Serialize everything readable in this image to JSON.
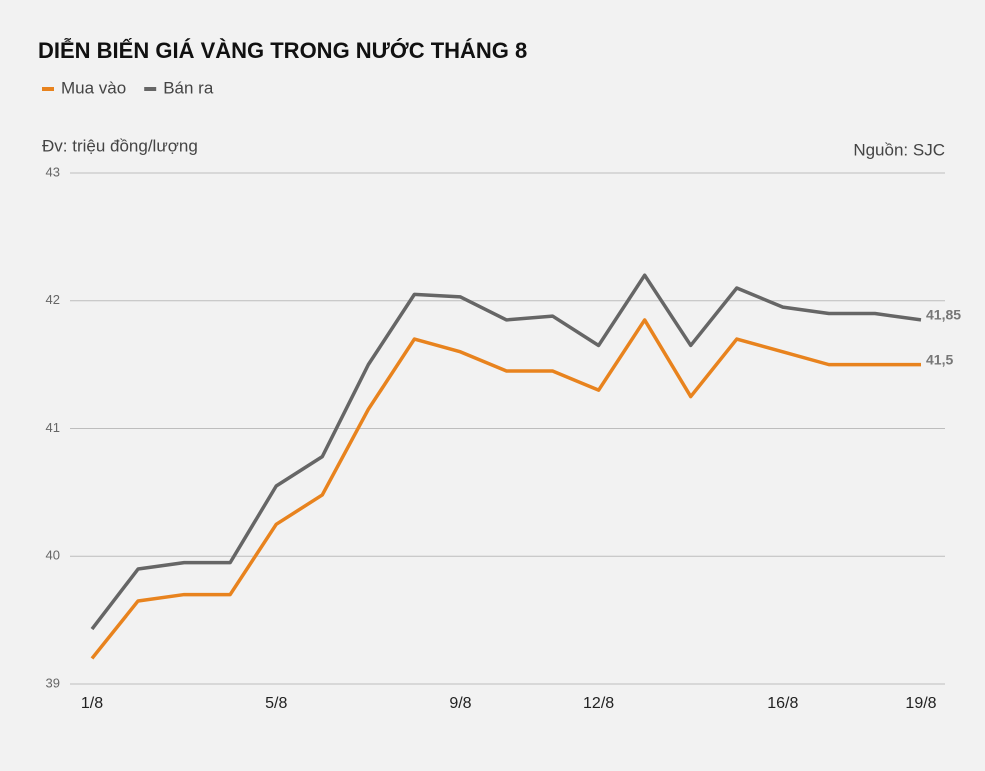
{
  "chart_data": {
    "type": "line",
    "title": "DIỄN BIẾN GIÁ VÀNG TRONG NƯỚC THÁNG 8",
    "y_label": "Đv: triệu đồng/lượng",
    "source": "Nguồn: SJC",
    "categories": [
      "1/8",
      null,
      null,
      null,
      "5/8",
      null,
      null,
      null,
      "9/8",
      null,
      null,
      "12/8",
      null,
      null,
      null,
      "16/8",
      null,
      null,
      "19/8"
    ],
    "series": [
      {
        "name": "Mua vào",
        "color": "#e8831e",
        "values": [
          39.2,
          39.65,
          39.7,
          39.7,
          40.25,
          40.48,
          41.15,
          41.7,
          41.6,
          41.45,
          41.45,
          41.3,
          41.85,
          41.25,
          41.7,
          41.6,
          41.5,
          41.5,
          41.5
        ],
        "value_labels": [
          null,
          null,
          null,
          null,
          null,
          null,
          null,
          null,
          null,
          null,
          null,
          null,
          null,
          null,
          null,
          null,
          null,
          null,
          "41,5"
        ]
      },
      {
        "name": "Bán ra",
        "color": "#666666",
        "values": [
          39.43,
          39.9,
          39.95,
          39.95,
          40.55,
          40.78,
          41.5,
          42.05,
          42.03,
          41.85,
          41.88,
          41.65,
          42.2,
          41.65,
          42.1,
          41.95,
          41.9,
          41.9,
          41.85
        ],
        "value_labels": [
          null,
          null,
          null,
          null,
          null,
          null,
          null,
          null,
          null,
          null,
          null,
          null,
          null,
          null,
          null,
          null,
          null,
          null,
          "41,85"
        ]
      }
    ],
    "ylim": [
      39,
      43
    ],
    "yticks": [
      39,
      40,
      41,
      42,
      43
    ],
    "grid": true,
    "legend": "top-left"
  }
}
